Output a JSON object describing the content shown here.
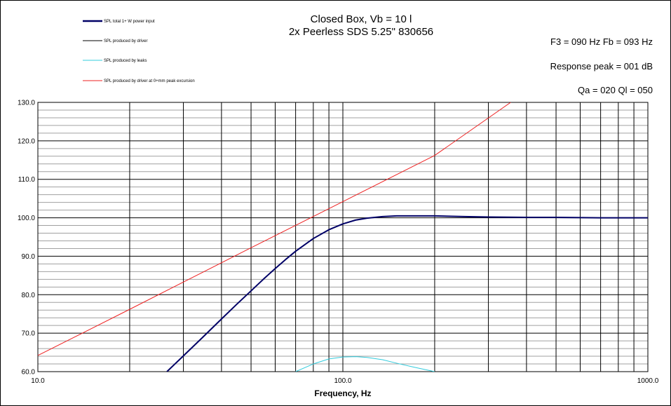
{
  "header": {
    "title_line1": "Closed Box, Vb = 10 l",
    "title_line2": "2x Peerless SDS 5.25\" 830656"
  },
  "info": {
    "f3_fb": "F3 = 090 Hz  Fb = 093 Hz",
    "response_peak": "Response peak = 001 dB",
    "qa_ql": "Qa = 020  Ql = 050"
  },
  "colors": {
    "total": "#000066",
    "driver": "#000000",
    "leaks": "#33CCDD",
    "excursion": "#EE2222",
    "grid": "#000000",
    "minor_grid": "#A0A0A0"
  },
  "chart_data": {
    "type": "line",
    "xscale": "log",
    "xlim": [
      10,
      1000
    ],
    "ylim": [
      60,
      130
    ],
    "y_major_step": 10,
    "y_minor_step": 2,
    "grid": true,
    "legend_position": "top-left",
    "xlabel": "Frequency, Hz",
    "ylabel": "",
    "x_tick_labels": [
      "10.0",
      "100.0",
      "1000.0"
    ],
    "x_tick_values": [
      10,
      100,
      1000
    ],
    "y_tick_labels": [
      "60.0",
      "70.0",
      "80.0",
      "90.0",
      "100.0",
      "110.0",
      "120.0",
      "130.0"
    ],
    "y_tick_values": [
      60,
      70,
      80,
      90,
      100,
      110,
      120,
      130
    ],
    "series": [
      {
        "name": "SPL total 1+ W power input",
        "color_key": "total",
        "width": 2,
        "x": [
          26.5,
          30,
          35,
          40,
          45,
          50,
          55,
          60,
          65,
          70,
          80,
          90,
          100,
          110,
          120,
          135,
          150,
          170,
          200,
          250,
          300,
          400,
          500,
          700,
          1000
        ],
        "y": [
          60.0,
          64.1,
          69.2,
          73.7,
          77.6,
          81.0,
          84.1,
          86.8,
          89.2,
          91.3,
          94.6,
          96.9,
          98.4,
          99.4,
          99.9,
          100.3,
          100.5,
          100.5,
          100.5,
          100.3,
          100.2,
          100.1,
          100.1,
          100.0,
          100.0
        ]
      },
      {
        "name": "SPL produced by driver",
        "color_key": "driver",
        "width": 1,
        "x": [
          26.5,
          30,
          35,
          40,
          45,
          50,
          55,
          60,
          65,
          70,
          80,
          90,
          100,
          110,
          120,
          135,
          150,
          170,
          200,
          250,
          300,
          400,
          500,
          700,
          1000
        ],
        "y": [
          60.0,
          64.1,
          69.2,
          73.7,
          77.6,
          81.0,
          84.1,
          86.8,
          89.2,
          91.3,
          94.6,
          96.9,
          98.4,
          99.4,
          99.9,
          100.3,
          100.5,
          100.5,
          100.5,
          100.3,
          100.2,
          100.1,
          100.1,
          100.0,
          100.0
        ]
      },
      {
        "name": "SPL produced by leaks",
        "color_key": "leaks",
        "width": 1,
        "x": [
          70,
          80,
          90,
          100,
          110,
          120,
          135,
          150,
          170,
          200
        ],
        "y": [
          60.0,
          62.0,
          63.3,
          63.8,
          63.9,
          63.7,
          63.1,
          62.2,
          61.2,
          60.0
        ]
      },
      {
        "name": "SPL produced by driver at 0+mm peak excursion",
        "color_key": "excursion",
        "width": 1,
        "x": [
          10,
          20,
          50,
          100,
          200,
          355
        ],
        "y": [
          64.2,
          76.2,
          92.2,
          104.2,
          116.2,
          130.0
        ]
      }
    ]
  }
}
